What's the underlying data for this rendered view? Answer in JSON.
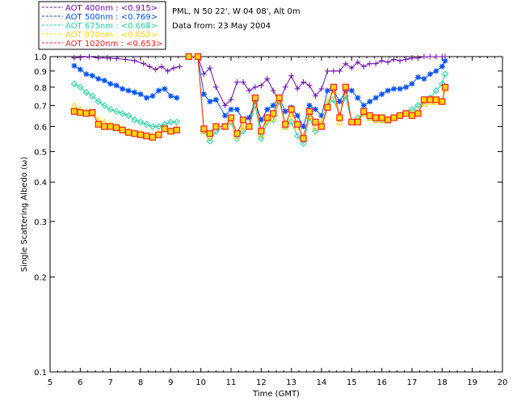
{
  "chart_data": {
    "type": "line",
    "title": "",
    "xlabel": "Time (GMT)",
    "ylabel": "Single Scattering Albedo (ω)",
    "xlim": [
      5,
      20
    ],
    "ylim": [
      0.1,
      1.0
    ],
    "yscale": "log",
    "x_ticks": [
      5,
      6,
      7,
      8,
      9,
      10,
      11,
      12,
      13,
      14,
      15,
      16,
      17,
      18,
      19,
      20
    ],
    "x_tick_labels": [
      "5",
      "6",
      "7",
      "8",
      "9",
      "10",
      "11",
      "12",
      "13",
      "14",
      "15",
      "16",
      "17",
      "18",
      "19",
      "20"
    ],
    "y_ticks": [
      0.1,
      0.2,
      0.3,
      0.4,
      0.5,
      0.6,
      0.7,
      0.8,
      0.9,
      1.0
    ],
    "y_tick_labels": [
      "0.1",
      "0.2",
      "0.3",
      "0.4",
      "0.5",
      "0.6",
      "0.7",
      "0.8",
      "0.9",
      "1.0"
    ],
    "info_lines": [
      "PML, N 50 22', W 04 08', Alt 0m",
      "Data from: 23 May 2004"
    ],
    "legend_position": "top-left",
    "series": [
      {
        "name": "AOT  400nm : <0.915>",
        "color": "#6a0dad",
        "marker": "plus",
        "segments": [
          {
            "x": [
              5.8,
              6.0,
              6.3,
              6.6,
              6.9,
              7.2,
              7.5,
              7.8,
              8.1,
              8.3,
              8.5,
              8.7,
              8.9,
              9.1,
              9.3
            ],
            "y": [
              0.99,
              0.995,
              1.0,
              0.99,
              0.99,
              0.985,
              0.98,
              0.97,
              0.95,
              0.93,
              0.91,
              0.93,
              0.9,
              0.92,
              0.93
            ]
          },
          {
            "x": [
              9.6,
              9.9,
              10.1,
              10.3,
              10.5,
              10.8,
              11.0,
              11.2,
              11.4,
              11.6,
              11.8,
              12.0,
              12.2,
              12.4,
              12.6,
              12.8,
              13.0,
              13.2,
              13.4,
              13.6,
              13.8,
              14.0,
              14.2,
              14.4,
              14.6,
              14.8,
              15.0,
              15.2,
              15.4,
              15.6,
              15.8,
              16.0,
              16.2,
              16.4,
              16.6,
              16.8,
              17.0,
              17.2,
              17.4,
              17.6,
              17.8,
              18.0,
              18.1
            ],
            "y": [
              1.0,
              1.0,
              0.88,
              0.92,
              0.8,
              0.7,
              0.73,
              0.83,
              0.83,
              0.78,
              0.8,
              0.81,
              0.85,
              0.78,
              0.72,
              0.8,
              0.87,
              0.79,
              0.83,
              0.81,
              0.75,
              0.79,
              0.9,
              0.9,
              0.9,
              0.95,
              0.92,
              0.96,
              0.93,
              0.95,
              0.95,
              0.97,
              0.96,
              0.98,
              0.97,
              0.98,
              0.99,
              0.99,
              1.0,
              1.0,
              1.0,
              1.0,
              1.0
            ]
          }
        ]
      },
      {
        "name": "AOT  500nm : <0.769>",
        "color": "#0050ff",
        "marker": "star",
        "segments": [
          {
            "x": [
              5.8,
              6.0,
              6.2,
              6.4,
              6.6,
              6.8,
              7.0,
              7.2,
              7.4,
              7.6,
              7.8,
              8.0,
              8.2,
              8.4,
              8.6,
              8.8,
              9.0,
              9.2
            ],
            "y": [
              0.935,
              0.91,
              0.88,
              0.87,
              0.85,
              0.84,
              0.82,
              0.81,
              0.79,
              0.78,
              0.77,
              0.76,
              0.74,
              0.75,
              0.78,
              0.79,
              0.75,
              0.74
            ]
          },
          {
            "x": [
              9.6,
              9.9,
              10.1,
              10.3,
              10.5,
              10.8,
              11.0,
              11.2,
              11.4,
              11.6,
              11.8,
              12.0,
              12.2,
              12.4,
              12.6,
              12.8,
              13.0,
              13.2,
              13.4,
              13.6,
              13.8,
              14.0,
              14.2,
              14.4,
              14.6,
              14.8,
              15.0,
              15.2,
              15.4,
              15.6,
              15.8,
              16.0,
              16.2,
              16.4,
              16.6,
              16.8,
              17.0,
              17.2,
              17.4,
              17.6,
              17.8,
              18.0,
              18.1
            ],
            "y": [
              1.0,
              1.0,
              0.76,
              0.72,
              0.73,
              0.65,
              0.68,
              0.68,
              0.63,
              0.64,
              0.72,
              0.63,
              0.68,
              0.7,
              0.74,
              0.67,
              0.69,
              0.65,
              0.6,
              0.7,
              0.68,
              0.65,
              0.78,
              0.78,
              0.72,
              0.78,
              0.78,
              0.74,
              0.7,
              0.72,
              0.74,
              0.76,
              0.78,
              0.79,
              0.79,
              0.8,
              0.82,
              0.86,
              0.85,
              0.88,
              0.9,
              0.93,
              0.97
            ]
          }
        ]
      },
      {
        "name": "AOT  675nm : <0.668>",
        "color": "#20d0a0",
        "marker": "diamond",
        "segments": [
          {
            "x": [
              5.8,
              6.0,
              6.2,
              6.4,
              6.6,
              6.8,
              7.0,
              7.2,
              7.4,
              7.6,
              7.8,
              8.0,
              8.2,
              8.4,
              8.6,
              8.8,
              9.0,
              9.2
            ],
            "y": [
              0.82,
              0.8,
              0.77,
              0.75,
              0.72,
              0.7,
              0.68,
              0.67,
              0.66,
              0.65,
              0.63,
              0.62,
              0.61,
              0.6,
              0.6,
              0.61,
              0.62,
              0.62
            ]
          },
          {
            "x": [
              9.6,
              9.9,
              10.1,
              10.3,
              10.5,
              10.8,
              11.0,
              11.2,
              11.4,
              11.6,
              11.8,
              12.0,
              12.2,
              12.4,
              12.6,
              12.8,
              13.0,
              13.2,
              13.4,
              13.6,
              13.8,
              14.0,
              14.2,
              14.4,
              14.6,
              14.8,
              15.0,
              15.2,
              15.4,
              15.6,
              15.8,
              16.0,
              16.2,
              16.4,
              16.6,
              16.8,
              17.0,
              17.2,
              17.4,
              17.6,
              17.8,
              18.0,
              18.1
            ],
            "y": [
              1.0,
              1.0,
              0.58,
              0.54,
              0.58,
              0.6,
              0.62,
              0.55,
              0.58,
              0.6,
              0.7,
              0.55,
              0.62,
              0.63,
              0.72,
              0.6,
              0.62,
              0.56,
              0.53,
              0.64,
              0.58,
              0.6,
              0.7,
              0.73,
              0.65,
              0.75,
              0.62,
              0.64,
              0.66,
              0.64,
              0.63,
              0.63,
              0.63,
              0.64,
              0.65,
              0.66,
              0.68,
              0.7,
              0.72,
              0.74,
              0.78,
              0.82,
              0.88
            ]
          }
        ]
      },
      {
        "name": "AOT  870nm : <0.652>",
        "color": "#ffd700",
        "marker": "triangle",
        "segments": [
          {
            "x": [
              5.8,
              6.0,
              6.2,
              6.4,
              6.6,
              6.8,
              7.0,
              7.2,
              7.4,
              7.6,
              7.8,
              8.0,
              8.2,
              8.4,
              8.6,
              8.8,
              9.0,
              9.2
            ],
            "y": [
              0.7,
              0.68,
              0.67,
              0.66,
              0.63,
              0.62,
              0.61,
              0.6,
              0.59,
              0.58,
              0.57,
              0.57,
              0.56,
              0.56,
              0.57,
              0.59,
              0.58,
              0.59
            ]
          },
          {
            "x": [
              9.6,
              9.9,
              10.1,
              10.3,
              10.5,
              10.8,
              11.0,
              11.2,
              11.4,
              11.6,
              11.8,
              12.0,
              12.2,
              12.4,
              12.6,
              12.8,
              13.0,
              13.2,
              13.4,
              13.6,
              13.8,
              14.0,
              14.2,
              14.4,
              14.6,
              14.8,
              15.0,
              15.2,
              15.4,
              15.6,
              15.8,
              16.0,
              16.2,
              16.4,
              16.6,
              16.8,
              17.0,
              17.2,
              17.4,
              17.6,
              17.8,
              18.0,
              18.1
            ],
            "y": [
              1.0,
              1.0,
              0.58,
              0.56,
              0.6,
              0.6,
              0.63,
              0.56,
              0.6,
              0.6,
              0.73,
              0.57,
              0.63,
              0.64,
              0.73,
              0.6,
              0.66,
              0.6,
              0.56,
              0.65,
              0.6,
              0.62,
              0.72,
              0.78,
              0.62,
              0.8,
              0.62,
              0.63,
              0.66,
              0.64,
              0.63,
              0.63,
              0.63,
              0.64,
              0.65,
              0.66,
              0.66,
              0.67,
              0.71,
              0.72,
              0.72,
              0.72,
              0.79
            ]
          }
        ]
      },
      {
        "name": "AOT 1020nm : <0.653>",
        "color": "#ff2020",
        "marker": "square",
        "segments": [
          {
            "x": [
              5.8,
              6.0,
              6.2,
              6.4,
              6.6,
              6.8,
              7.0,
              7.2,
              7.4,
              7.6,
              7.8,
              8.0,
              8.2,
              8.4,
              8.6,
              8.8,
              9.0,
              9.2
            ],
            "y": [
              0.67,
              0.665,
              0.66,
              0.665,
              0.61,
              0.6,
              0.6,
              0.595,
              0.585,
              0.575,
              0.57,
              0.565,
              0.56,
              0.555,
              0.565,
              0.59,
              0.58,
              0.585
            ]
          },
          {
            "x": [
              9.6,
              9.9,
              10.1,
              10.3,
              10.5,
              10.8,
              11.0,
              11.2,
              11.4,
              11.6,
              11.8,
              12.0,
              12.2,
              12.4,
              12.6,
              12.8,
              13.0,
              13.2,
              13.4,
              13.6,
              13.8,
              14.0,
              14.2,
              14.4,
              14.6,
              14.8,
              15.0,
              15.2,
              15.4,
              15.6,
              15.8,
              16.0,
              16.2,
              16.4,
              16.6,
              16.8,
              17.0,
              17.2,
              17.4,
              17.6,
              17.8,
              18.0,
              18.1
            ],
            "y": [
              1.0,
              1.0,
              0.59,
              0.57,
              0.6,
              0.6,
              0.64,
              0.57,
              0.63,
              0.6,
              0.74,
              0.58,
              0.64,
              0.66,
              0.74,
              0.61,
              0.68,
              0.61,
              0.55,
              0.67,
              0.62,
              0.6,
              0.69,
              0.8,
              0.64,
              0.8,
              0.62,
              0.62,
              0.67,
              0.65,
              0.64,
              0.64,
              0.63,
              0.64,
              0.65,
              0.66,
              0.65,
              0.66,
              0.73,
              0.73,
              0.73,
              0.72,
              0.8
            ]
          }
        ]
      }
    ]
  }
}
